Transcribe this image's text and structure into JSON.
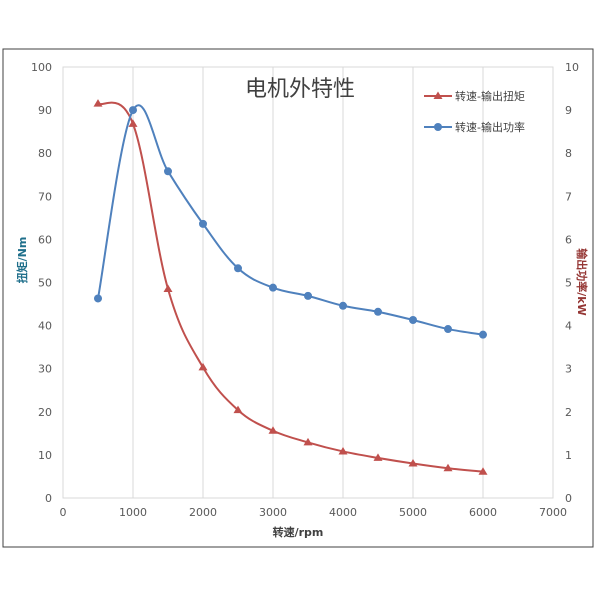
{
  "chart_data": {
    "type": "line",
    "title": "电机外特性",
    "xlabel": "转速/rpm",
    "ylabel": "扭矩/Nm",
    "y2label": "输出功率/kW",
    "xlim": [
      0,
      7000
    ],
    "ylim": [
      0,
      100
    ],
    "y2lim": [
      0,
      10
    ],
    "xticks": [
      "0",
      "1000",
      "2000",
      "3000",
      "4000",
      "5000",
      "6000",
      "7000"
    ],
    "yticks": [
      "0",
      "10",
      "20",
      "30",
      "40",
      "50",
      "60",
      "70",
      "80",
      "90",
      "100"
    ],
    "y2ticks": [
      "0",
      "1",
      "2",
      "3",
      "4",
      "5",
      "6",
      "7",
      "8",
      "9",
      "10"
    ],
    "grid": "vertical",
    "legend_position": "top-right",
    "series": [
      {
        "name": "转速-输出扭矩",
        "axis": "left",
        "color": "#C0504D",
        "marker": "triangle",
        "x": [
          500,
          1000,
          1500,
          2000,
          2500,
          3000,
          3500,
          4000,
          4500,
          5000,
          5500,
          6000
        ],
        "values": [
          91.5,
          86.8,
          48.5,
          30.3,
          20.4,
          15.6,
          12.9,
          10.8,
          9.3,
          8.0,
          6.9,
          6.1
        ]
      },
      {
        "name": "转速-输出功率",
        "axis": "right",
        "color": "#4F81BD",
        "marker": "circle",
        "x": [
          500,
          1000,
          1500,
          2000,
          2500,
          3000,
          3500,
          4000,
          4500,
          5000,
          5500,
          6000
        ],
        "values": [
          4.63,
          9.0,
          7.58,
          6.36,
          5.33,
          4.88,
          4.69,
          4.46,
          4.32,
          4.13,
          3.92,
          3.79
        ]
      }
    ]
  }
}
